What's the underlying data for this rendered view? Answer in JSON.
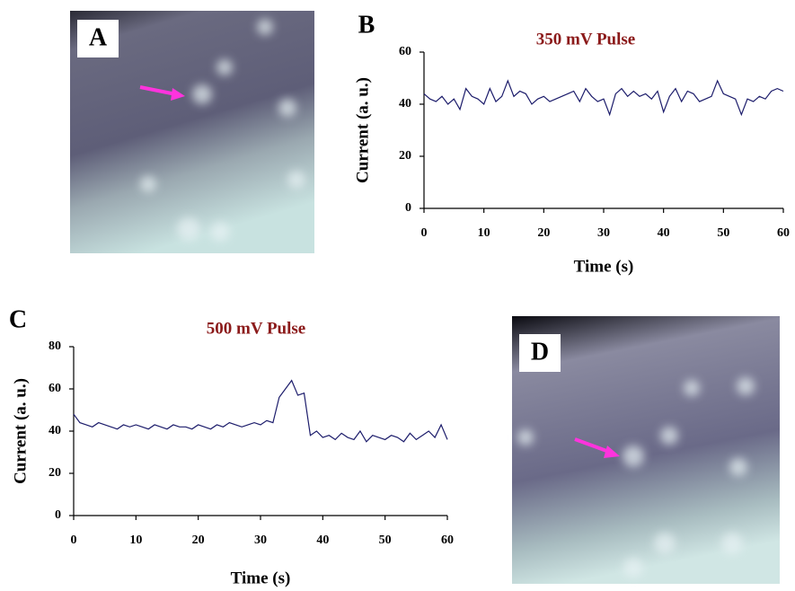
{
  "panel_labels": [
    "A",
    "B",
    "C",
    "D"
  ],
  "chart_data": [
    {
      "type": "line",
      "title": "350 mV Pulse",
      "x_label": "Time (s)",
      "y_label": "Current (a. u.)",
      "xlim": [
        0,
        60
      ],
      "xticks": [
        0,
        10,
        20,
        30,
        40,
        50,
        60
      ],
      "ylim": [
        0,
        60
      ],
      "yticks": [
        0,
        20,
        40,
        60
      ],
      "grid": false,
      "color": "#1c1c6b",
      "x": [
        0,
        1,
        2,
        3,
        4,
        5,
        6,
        7,
        8,
        9,
        10,
        11,
        12,
        13,
        14,
        15,
        16,
        17,
        18,
        19,
        20,
        21,
        22,
        23,
        24,
        25,
        26,
        27,
        28,
        29,
        30,
        31,
        32,
        33,
        34,
        35,
        36,
        37,
        38,
        39,
        40,
        41,
        42,
        43,
        44,
        45,
        46,
        47,
        48,
        49,
        50,
        51,
        52,
        53,
        54,
        55,
        56,
        57,
        58,
        59,
        60
      ],
      "values": [
        44,
        42,
        41,
        43,
        40,
        42,
        38,
        46,
        43,
        42,
        40,
        46,
        41,
        43,
        49,
        43,
        45,
        44,
        40,
        42,
        43,
        41,
        42,
        43,
        44,
        45,
        41,
        46,
        43,
        41,
        42,
        36,
        44,
        46,
        43,
        45,
        43,
        44,
        42,
        45,
        37,
        43,
        46,
        41,
        45,
        44,
        41,
        42,
        43,
        49,
        44,
        43,
        42,
        36,
        42,
        41,
        43,
        42,
        45,
        46,
        45
      ]
    },
    {
      "type": "line",
      "title": "500 mV Pulse",
      "x_label": "Time (s)",
      "y_label": "Current (a. u.)",
      "xlim": [
        0,
        60
      ],
      "xticks": [
        0,
        10,
        20,
        30,
        40,
        50,
        60
      ],
      "ylim": [
        0,
        80
      ],
      "yticks": [
        0,
        20,
        40,
        60,
        80
      ],
      "grid": false,
      "color": "#1c1c6b",
      "x": [
        0,
        1,
        2,
        3,
        4,
        5,
        6,
        7,
        8,
        9,
        10,
        11,
        12,
        13,
        14,
        15,
        16,
        17,
        18,
        19,
        20,
        21,
        22,
        23,
        24,
        25,
        26,
        27,
        28,
        29,
        30,
        31,
        32,
        33,
        34,
        35,
        36,
        37,
        38,
        39,
        40,
        41,
        42,
        43,
        44,
        45,
        46,
        47,
        48,
        49,
        50,
        51,
        52,
        53,
        54,
        55,
        56,
        57,
        58,
        59,
        60
      ],
      "values": [
        48,
        44,
        43,
        42,
        44,
        43,
        42,
        41,
        43,
        42,
        43,
        42,
        41,
        43,
        42,
        41,
        43,
        42,
        42,
        41,
        43,
        42,
        41,
        43,
        42,
        44,
        43,
        42,
        43,
        44,
        43,
        45,
        44,
        56,
        60,
        64,
        57,
        58,
        38,
        40,
        37,
        38,
        36,
        39,
        37,
        36,
        40,
        35,
        38,
        37,
        36,
        38,
        37,
        35,
        39,
        36,
        38,
        40,
        37,
        43,
        36
      ]
    }
  ]
}
